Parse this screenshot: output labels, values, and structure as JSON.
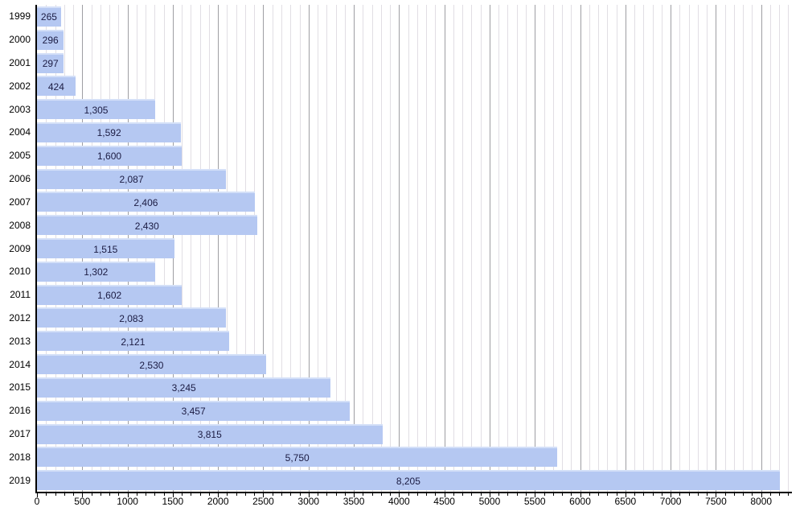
{
  "chart_data": {
    "type": "bar",
    "orientation": "horizontal",
    "title": "",
    "xlabel": "",
    "ylabel": "",
    "categories": [
      "1999",
      "2000",
      "2001",
      "2002",
      "2003",
      "2004",
      "2005",
      "2006",
      "2007",
      "2008",
      "2009",
      "2010",
      "2011",
      "2012",
      "2013",
      "2014",
      "2015",
      "2016",
      "2017",
      "2018",
      "2019"
    ],
    "values": [
      265,
      296,
      297,
      424,
      1305,
      1592,
      1600,
      2087,
      2406,
      2430,
      1515,
      1302,
      1602,
      2083,
      2121,
      2530,
      3245,
      3457,
      3815,
      5750,
      8205
    ],
    "value_labels": [
      "265",
      "296",
      "297",
      "424",
      "1,305",
      "1,592",
      "1,600",
      "2,087",
      "2,406",
      "2,430",
      "1,515",
      "1,302",
      "1,602",
      "2,083",
      "2,121",
      "2,530",
      "3,245",
      "3,457",
      "3,815",
      "5,750",
      "8,205"
    ],
    "xlim": [
      0,
      8340
    ],
    "x_major_ticks": [
      0,
      500,
      1000,
      1500,
      2000,
      2500,
      3000,
      3500,
      4000,
      4500,
      5000,
      5500,
      6000,
      6500,
      7000,
      7500,
      8000
    ],
    "x_minor_step": 100,
    "x_grid_max": 8300,
    "grid": "vertical minor+major",
    "legend": null,
    "colors": {
      "bar_fill": "#b5c8f2",
      "bar_highlight": "#d4e0f8",
      "value_text": "#1b1b42",
      "axis_line": "#000000",
      "grid_minor": "#e1dee4",
      "grid_major": "#9e9ea3",
      "tick_mark": "#000000",
      "tick_text": "#000000",
      "background": "#ffffff"
    }
  }
}
